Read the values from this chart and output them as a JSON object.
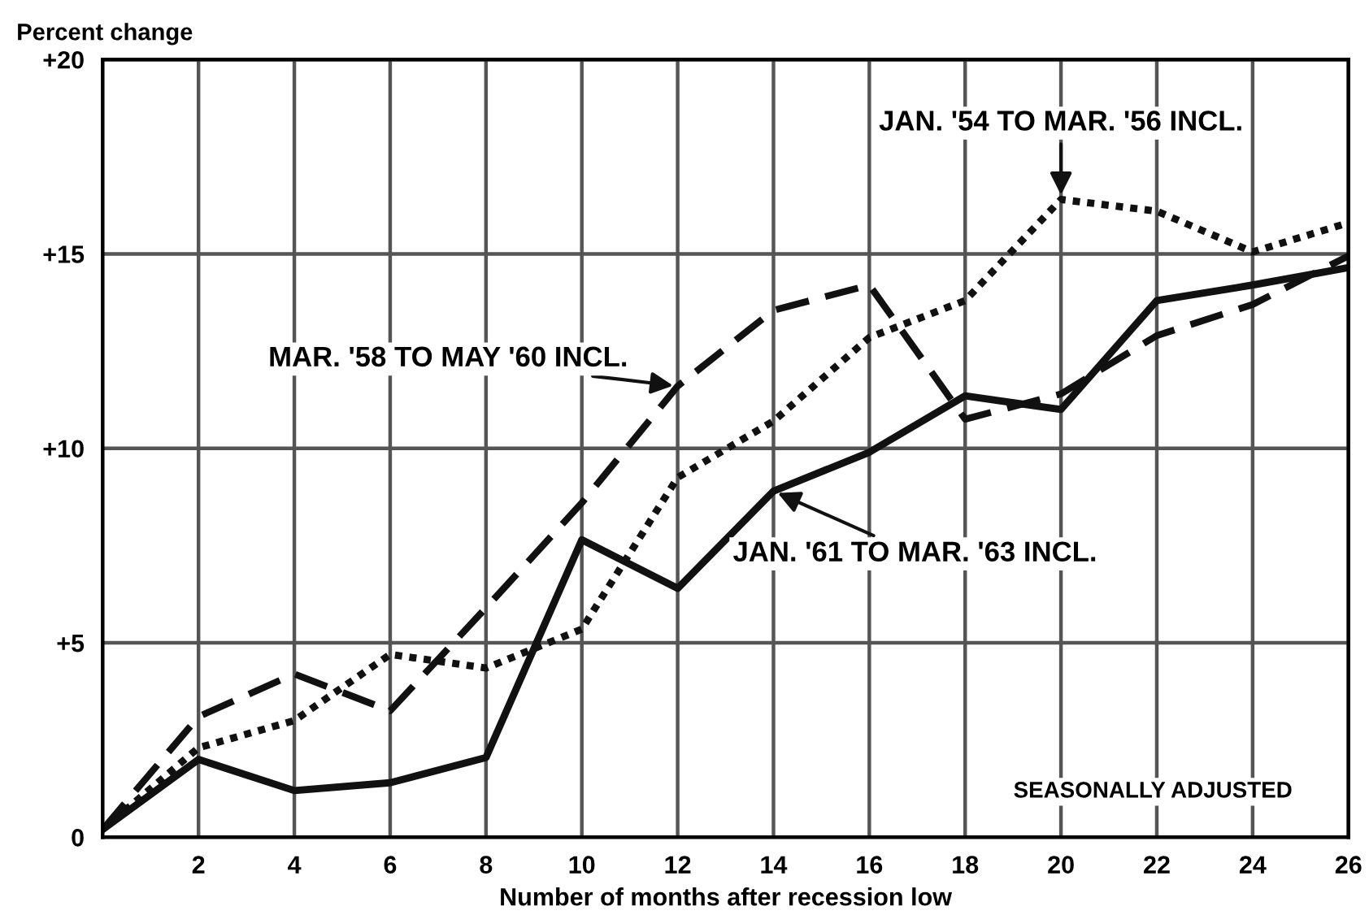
{
  "chart_data": {
    "type": "line",
    "ylabel": "Percent change",
    "xlabel": "Number of months after recession low",
    "x": [
      0,
      2,
      4,
      6,
      8,
      10,
      12,
      14,
      16,
      18,
      20,
      22,
      24,
      26
    ],
    "series": [
      {
        "color": "#111111",
        "line_style": "dotted",
        "values": [
          0.2,
          2.3,
          3.0,
          4.7,
          4.35,
          5.35,
          9.25,
          10.7,
          12.85,
          13.8,
          16.4,
          16.1,
          15.05,
          15.8
        ]
      },
      {
        "color": "#111111",
        "line_style": "dashed",
        "values": [
          0.2,
          3.1,
          4.2,
          3.25,
          5.9,
          8.6,
          11.6,
          13.55,
          14.2,
          10.75,
          11.4,
          12.9,
          13.7,
          14.95
        ]
      },
      {
        "color": "#111111",
        "line_style": "solid",
        "values": [
          0.2,
          2.0,
          1.2,
          1.4,
          2.05,
          7.65,
          6.4,
          8.9,
          9.9,
          11.35,
          11.0,
          13.8,
          14.2,
          14.65
        ]
      }
    ],
    "annotations": [
      {
        "text": "JAN. '54 TO MAR. '56 INCL.",
        "x": 20,
        "y": 16.4
      },
      {
        "text": "MAR. '58 TO MAY '60 INCL.",
        "x": 12,
        "y": 11.6
      },
      {
        "text": "JAN. '61 TO MAR. '63 INCL.",
        "x": 14,
        "y": 8.9
      },
      "SEASONALLY ADJUSTED"
    ],
    "xlim": [
      0,
      26
    ],
    "xticks": [
      2,
      4,
      6,
      8,
      10,
      12,
      14,
      16,
      18,
      20,
      22,
      24,
      26
    ],
    "ylim": [
      0,
      20
    ],
    "yticks": [
      0,
      {
        "value": 5,
        "label": "+5"
      },
      {
        "value": 10,
        "label": "+10"
      },
      {
        "value": 15,
        "label": "+15"
      },
      {
        "value": 20,
        "label": "+20"
      }
    ],
    "grid": true,
    "marker": "none",
    "legend": false
  }
}
